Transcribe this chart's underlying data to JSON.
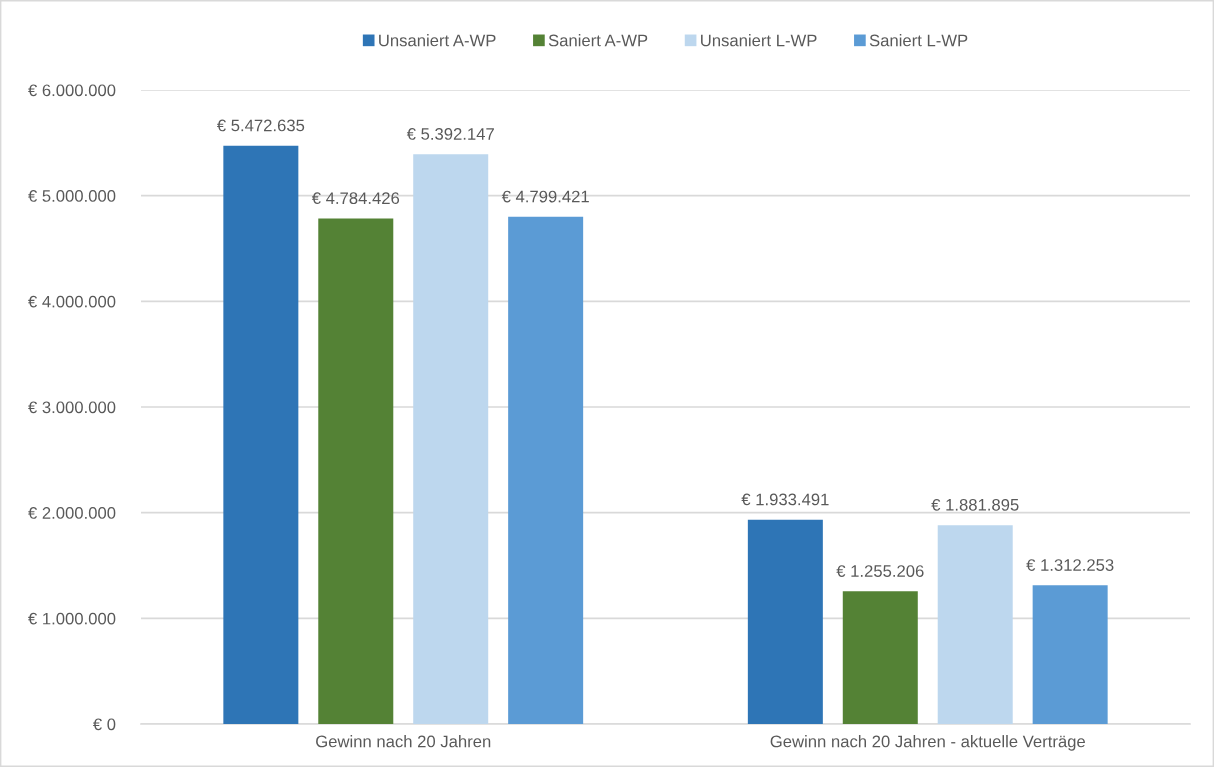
{
  "chart_data": {
    "type": "bar",
    "categories": [
      "Gewinn nach 20 Jahren",
      "Gewinn nach 20 Jahren - aktuelle Verträge"
    ],
    "series": [
      {
        "name": "Unsaniert A-WP",
        "color": "#2e75b6",
        "values": [
          5472635,
          1933491
        ],
        "value_labels": [
          "€ 5.472.635",
          "€ 1.933.491"
        ]
      },
      {
        "name": "Saniert A-WP",
        "color": "#548235",
        "values": [
          4784426,
          1255206
        ],
        "value_labels": [
          "€ 4.784.426",
          "€ 1.255.206"
        ]
      },
      {
        "name": "Unsaniert L-WP",
        "color": "#bdd7ee",
        "values": [
          5392147,
          1881895
        ],
        "value_labels": [
          "€ 5.392.147",
          "€ 1.881.895"
        ]
      },
      {
        "name": "Saniert L-WP",
        "color": "#5b9bd5",
        "values": [
          4799421,
          1312253
        ],
        "value_labels": [
          "€ 4.799.421",
          "€ 1.312.253"
        ]
      }
    ],
    "ylim": [
      0,
      6000000
    ],
    "yticks": [
      {
        "value": 0,
        "label": "€ 0"
      },
      {
        "value": 1000000,
        "label": "€ 1.000.000"
      },
      {
        "value": 2000000,
        "label": "€ 2.000.000"
      },
      {
        "value": 3000000,
        "label": "€ 3.000.000"
      },
      {
        "value": 4000000,
        "label": "€ 4.000.000"
      },
      {
        "value": 5000000,
        "label": "€ 5.000.000"
      },
      {
        "value": 6000000,
        "label": "€ 6.000.000"
      }
    ],
    "grid": "y",
    "legend": "top"
  }
}
